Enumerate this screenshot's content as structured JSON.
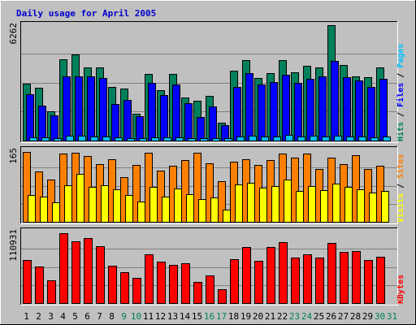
{
  "chart_data": {
    "type": "bar",
    "title": "Daily usage for April 2005",
    "categories": [
      "1",
      "2",
      "3",
      "4",
      "5",
      "6",
      "7",
      "8",
      "9",
      "10",
      "11",
      "12",
      "13",
      "14",
      "15",
      "16",
      "17",
      "18",
      "19",
      "20",
      "21",
      "22",
      "23",
      "24",
      "25",
      "26",
      "27",
      "28",
      "29",
      "30",
      "31"
    ],
    "weekend_days": [
      9,
      10,
      16,
      17,
      23,
      24,
      30,
      31
    ],
    "panels": [
      {
        "id": "hits",
        "ymax": 6262,
        "ymax_label": "6262",
        "right_label_parts": [
          {
            "text": "Hits",
            "color": "#00805c"
          },
          {
            "text": " / ",
            "color": "#000000"
          },
          {
            "text": "Files",
            "color": "#0000ff"
          },
          {
            "text": " / ",
            "color": "#000000"
          },
          {
            "text": "Pages",
            "color": "#00c0ff"
          }
        ],
        "series": [
          {
            "name": "Hits",
            "color": "#00805c",
            "values": [
              3060,
              2850,
              1570,
              4370,
              4640,
              3930,
              3930,
              2870,
              2820,
              1440,
              3580,
              2710,
              3600,
              2340,
              2130,
              2410,
              950,
              3750,
              4340,
              3360,
              3630,
              4320,
              3660,
              4030,
              3950,
              6200,
              4080,
              3470,
              3410,
              3960
            ]
          },
          {
            "name": "Files",
            "color": "#0000ff",
            "values": [
              2490,
              1880,
              1360,
              3480,
              3470,
              3440,
              3360,
              1980,
              2190,
              1300,
              3090,
              2440,
              3020,
              2010,
              1270,
              1850,
              820,
              2870,
              3630,
              3040,
              3140,
              3560,
              3120,
              3320,
              3460,
              4310,
              3430,
              3220,
              2870,
              3340
            ]
          },
          {
            "name": "Pages",
            "color": "#00c0ff",
            "values": [
              160,
              160,
              140,
              280,
              270,
              240,
              200,
              160,
              150,
              110,
              170,
              160,
              180,
              140,
              120,
              130,
              110,
              200,
              260,
              210,
              220,
              300,
              230,
              260,
              240,
              260,
              230,
              220,
              190,
              200
            ]
          }
        ]
      },
      {
        "id": "visits",
        "ymax": 165,
        "ymax_label": "165",
        "right_label_parts": [
          {
            "text": "Visits",
            "color": "#ffff00"
          },
          {
            "text": " / ",
            "color": "#000000"
          },
          {
            "text": "Sites",
            "color": "#ff8000"
          }
        ],
        "series": [
          {
            "name": "Sites",
            "color": "#ff8000",
            "values": [
              159,
              115,
              97,
              155,
              158,
              150,
              132,
              142,
              102,
              130,
              157,
              117,
              127,
              140,
              157,
              134,
              92,
              137,
              143,
              129,
              140,
              155,
              147,
              156,
              120,
              147,
              131,
              152,
              120,
              127
            ]
          },
          {
            "name": "Visits",
            "color": "#ffff00",
            "values": [
              62,
              58,
              44,
              84,
              110,
              79,
              84,
              74,
              62,
              46,
              79,
              57,
              76,
              63,
              51,
              56,
              28,
              85,
              89,
              78,
              81,
              96,
              71,
              82,
              73,
              88,
              80,
              75,
              67,
              71
            ]
          }
        ]
      },
      {
        "id": "kbytes",
        "ymax": 110931,
        "ymax_label": "110931",
        "right_label_parts": [
          {
            "text": "KBytes",
            "color": "#ff0000"
          }
        ],
        "series": [
          {
            "name": "KBytes",
            "color": "#ff0000",
            "values": [
              65900,
              56500,
              34500,
              107000,
              95000,
              99700,
              86900,
              57300,
              47400,
              38800,
              74500,
              64000,
              58600,
              60800,
              32700,
              42000,
              20800,
              66800,
              86500,
              64900,
              86300,
              93700,
              69300,
              74800,
              69800,
              92500,
              78300,
              79900,
              66200,
              71000
            ]
          }
        ]
      }
    ]
  }
}
